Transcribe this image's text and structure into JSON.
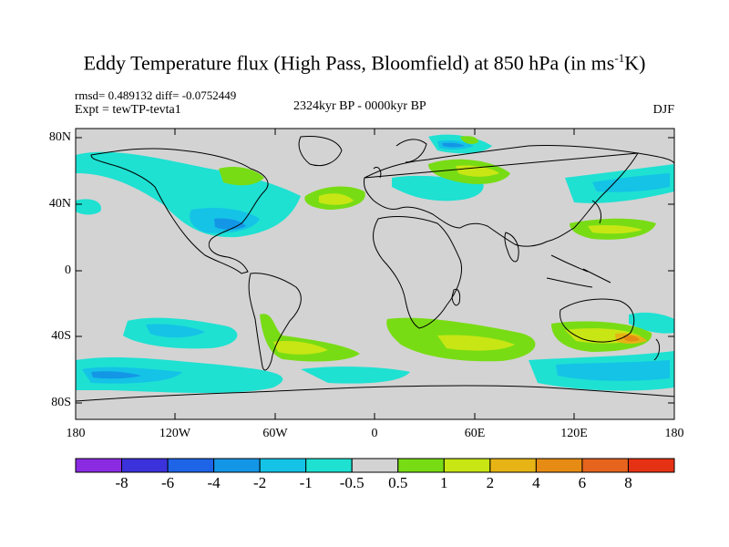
{
  "title": {
    "main": "Eddy Temperature flux (High Pass, Bloomfield) at 850 hPa (in ms",
    "sup": "-1",
    "end": "K)"
  },
  "stats": {
    "rmsd": "rmsd= 0.489132 diff= -0.0752449"
  },
  "experiment": "Expt = tewTP-tevta1",
  "period": "2324kyr BP - 0000kyr BP",
  "season": "DJF",
  "lat_labels": [
    "80N",
    "40N",
    "0",
    "40S",
    "80S"
  ],
  "lon_labels": [
    "180",
    "120W",
    "60W",
    "0",
    "60E",
    "120E",
    "180"
  ],
  "colorbar": {
    "labels": [
      "-8",
      "-6",
      "-4",
      "-2",
      "-1",
      "-0.5",
      "0.5",
      "1",
      "2",
      "4",
      "6",
      "8"
    ],
    "colors": [
      "#8a2be2",
      "#3c32dc",
      "#1e64e6",
      "#1496e6",
      "#14c3e6",
      "#1ee1d2",
      "#d3d3d3",
      "#78dc14",
      "#c8e614",
      "#e6b414",
      "#e68c14",
      "#e6641e",
      "#e63214"
    ]
  },
  "map_colors": {
    "land_background": "#d3d3d3",
    "coast": "#000000"
  }
}
